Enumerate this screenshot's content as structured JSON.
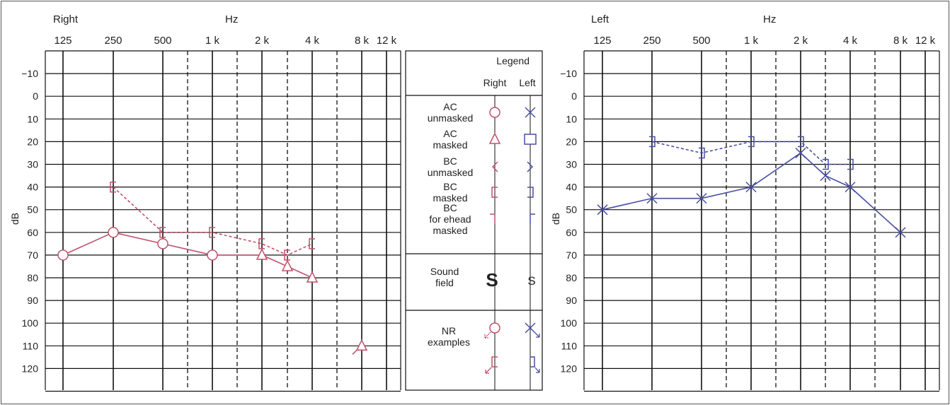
{
  "colors": {
    "right": "#c0506a",
    "left": "#4a4fa0",
    "grid": "#111111",
    "frame": "#555555"
  },
  "chart_data": [
    {
      "type": "line",
      "title": "Right",
      "xlabel": "Hz",
      "ylabel": "dB",
      "x_ticks": [
        "125",
        "250",
        "500",
        "1 k",
        "2 k",
        "4 k",
        "8 k",
        "12 k"
      ],
      "x_ticks_dashed": [
        "750",
        "1.5 k",
        "3 k",
        "6 k"
      ],
      "y_ticks": [
        -10,
        0,
        10,
        20,
        30,
        40,
        50,
        60,
        70,
        80,
        90,
        100,
        110,
        120
      ],
      "ylim": [
        -20,
        130
      ],
      "y_reversed": true,
      "series": [
        {
          "name": "AC masked / unmasked",
          "style": "solid",
          "color": "#c0506a",
          "points": [
            {
              "x": "125",
              "y": 70,
              "marker": "circle"
            },
            {
              "x": "250",
              "y": 60,
              "marker": "circle"
            },
            {
              "x": "500",
              "y": 65,
              "marker": "circle"
            },
            {
              "x": "1 k",
              "y": 70,
              "marker": "circle"
            },
            {
              "x": "2 k",
              "y": 70,
              "marker": "triangle"
            },
            {
              "x": "3 k",
              "y": 75,
              "marker": "triangle"
            },
            {
              "x": "4 k",
              "y": 80,
              "marker": "triangle"
            }
          ]
        },
        {
          "name": "BC masked",
          "style": "dashed",
          "color": "#c0506a",
          "points": [
            {
              "x": "250",
              "y": 40,
              "marker": "bracket"
            },
            {
              "x": "500",
              "y": 60,
              "marker": "bracket"
            },
            {
              "x": "1 k",
              "y": 60,
              "marker": "bracket"
            },
            {
              "x": "2 k",
              "y": 65,
              "marker": "bracket"
            },
            {
              "x": "3 k",
              "y": 70,
              "marker": "bracket"
            },
            {
              "x": "4 k",
              "y": 65,
              "marker": "bracket"
            }
          ]
        },
        {
          "name": "NR",
          "style": "none",
          "color": "#c0506a",
          "points": [
            {
              "x": "8 k",
              "y": 110,
              "marker": "triangle-nr"
            }
          ]
        }
      ]
    },
    {
      "type": "line",
      "title": "Left",
      "xlabel": "Hz",
      "ylabel": "dB",
      "x_ticks": [
        "125",
        "250",
        "500",
        "1 k",
        "2 k",
        "4 k",
        "8 k",
        "12 k"
      ],
      "x_ticks_dashed": [
        "750",
        "1.5 k",
        "3 k",
        "6 k"
      ],
      "y_ticks": [
        -10,
        0,
        10,
        20,
        30,
        40,
        50,
        60,
        70,
        80,
        90,
        100,
        110,
        120
      ],
      "ylim": [
        -20,
        130
      ],
      "y_reversed": true,
      "series": [
        {
          "name": "AC unmasked",
          "style": "solid",
          "color": "#4a4fa0",
          "points": [
            {
              "x": "125",
              "y": 50,
              "marker": "x"
            },
            {
              "x": "250",
              "y": 45,
              "marker": "x"
            },
            {
              "x": "500",
              "y": 45,
              "marker": "x"
            },
            {
              "x": "1 k",
              "y": 40,
              "marker": "x"
            },
            {
              "x": "2 k",
              "y": 25,
              "marker": "x"
            },
            {
              "x": "3 k",
              "y": 35,
              "marker": "x"
            },
            {
              "x": "4 k",
              "y": 40,
              "marker": "x"
            },
            {
              "x": "8 k",
              "y": 60,
              "marker": "x"
            }
          ]
        },
        {
          "name": "BC masked",
          "style": "dashed",
          "color": "#4a4fa0",
          "points": [
            {
              "x": "250",
              "y": 20,
              "marker": "bracket-l"
            },
            {
              "x": "500",
              "y": 25,
              "marker": "bracket-l"
            },
            {
              "x": "1 k",
              "y": 20,
              "marker": "bracket-l"
            },
            {
              "x": "2 k",
              "y": 20,
              "marker": "bracket-l"
            },
            {
              "x": "3 k",
              "y": 30,
              "marker": "bracket-l"
            },
            {
              "x": "4 k",
              "y": 30,
              "marker": "bracket-l"
            }
          ]
        }
      ]
    }
  ],
  "legend": {
    "title": "Legend",
    "col_right": "Right",
    "col_left": "Left",
    "rows": [
      {
        "label": [
          "AC",
          "unmasked"
        ],
        "right": "circle",
        "left": "x"
      },
      {
        "label": [
          "AC",
          "masked"
        ],
        "right": "triangle",
        "left": "square"
      },
      {
        "label": [
          "BC",
          "unmasked"
        ],
        "right": "angle-left",
        "left": "angle-right"
      },
      {
        "label": [
          "BC",
          "masked"
        ],
        "right": "bracket",
        "left": "bracket-l"
      },
      {
        "label": [
          "BC",
          "for ehead",
          "masked"
        ],
        "right": "forehead",
        "left": "forehead-l"
      }
    ],
    "sound_field": {
      "label": [
        "Sound",
        "field"
      ],
      "right": "S",
      "left": "S"
    },
    "nr": {
      "label": [
        "NR",
        "examples"
      ]
    }
  }
}
